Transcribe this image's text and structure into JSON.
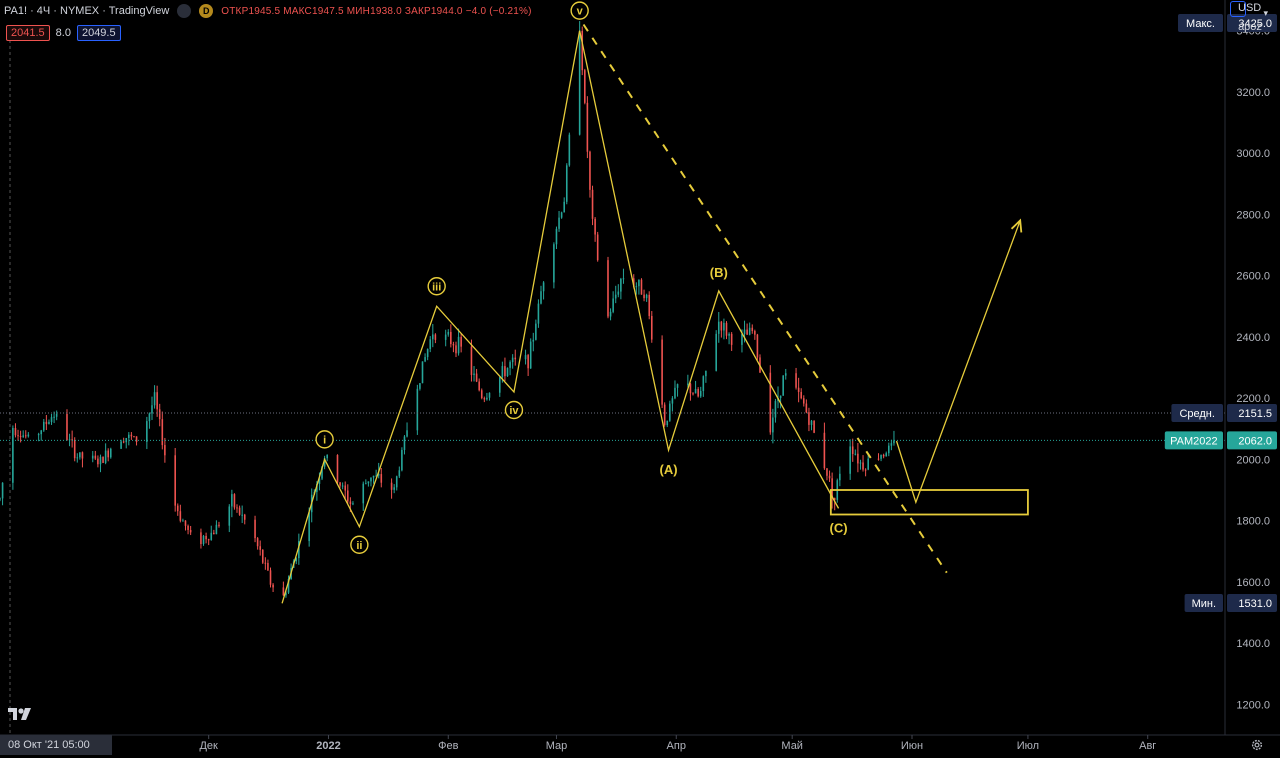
{
  "header": {
    "symbol_line": "PA1! · 4Ч · NYMEX · TradingView",
    "badge": "D",
    "ohlc": [
      {
        "k": "ОТКР",
        "v": "1945.5"
      },
      {
        "k": "МАКС",
        "v": "1947.5"
      },
      {
        "k": "МИН",
        "v": "1938.0"
      },
      {
        "k": "ЗАКР",
        "v": "1944.0"
      },
      {
        "k": "",
        "v": "−4.0 (−0.21%)"
      }
    ],
    "bid": "2041.5",
    "spread": "8.0",
    "ask": "2049.5"
  },
  "scale_box": {
    "currency": "USD",
    "mode": "apoz"
  },
  "colors": {
    "background": "#000000",
    "up": "#26a69a",
    "down": "#ef5350",
    "wave": "#e6cc3b",
    "axis_text": "#b2b5be",
    "label_bg": "#2a2e39"
  },
  "chart_data": {
    "type": "candlestick",
    "symbol": "PA1!",
    "interval": "4Ч",
    "exchange": "NYMEX",
    "y_axis": {
      "ticks": [
        1200,
        1400,
        1600,
        1800,
        2000,
        2200,
        2400,
        2600,
        2800,
        3000,
        3200,
        3400
      ],
      "tick_labels": [
        "1200.0",
        "1400.0",
        "1600.0",
        "1800.0",
        "2000.0",
        "2200.0",
        "2400.0",
        "2600.0",
        "2800.0",
        "3000.0",
        "3200.0",
        "3400.0"
      ],
      "ylim": [
        1100,
        3500
      ]
    },
    "x_axis": {
      "ticks": [
        {
          "date": "2021-12-01",
          "label": "Дек"
        },
        {
          "date": "2022-01-01",
          "label": "2022"
        },
        {
          "date": "2022-02-01",
          "label": "Фев"
        },
        {
          "date": "2022-03-01",
          "label": "Мар"
        },
        {
          "date": "2022-04-01",
          "label": "Апр"
        },
        {
          "date": "2022-05-01",
          "label": "Май"
        },
        {
          "date": "2022-06-01",
          "label": "Июн"
        },
        {
          "date": "2022-07-01",
          "label": "Июл"
        },
        {
          "date": "2022-08-01",
          "label": "Авг"
        }
      ],
      "xlim": [
        "2021-10-08",
        "2022-08-21"
      ],
      "cursor_label": "08 Окт '21  05:00"
    },
    "price_path": [
      {
        "date": "2021-10-08",
        "value": 1870
      },
      {
        "date": "2021-10-11",
        "value": 2110
      },
      {
        "date": "2021-10-16",
        "value": 2060
      },
      {
        "date": "2021-10-22",
        "value": 2150
      },
      {
        "date": "2021-10-28",
        "value": 2010
      },
      {
        "date": "2021-11-03",
        "value": 1990
      },
      {
        "date": "2021-11-08",
        "value": 2080
      },
      {
        "date": "2021-11-13",
        "value": 2060
      },
      {
        "date": "2021-11-17",
        "value": 2200
      },
      {
        "date": "2021-11-22",
        "value": 1860
      },
      {
        "date": "2021-11-27",
        "value": 1730
      },
      {
        "date": "2021-12-02",
        "value": 1760
      },
      {
        "date": "2021-12-07",
        "value": 1860
      },
      {
        "date": "2021-12-12",
        "value": 1770
      },
      {
        "date": "2021-12-17",
        "value": 1600
      },
      {
        "date": "2021-12-20",
        "value": 1535
      },
      {
        "date": "2021-12-26",
        "value": 1800
      },
      {
        "date": "2021-12-31",
        "value": 2010
      },
      {
        "date": "2022-01-07",
        "value": 1850
      },
      {
        "date": "2022-01-12",
        "value": 1950
      },
      {
        "date": "2022-01-18",
        "value": 1900
      },
      {
        "date": "2022-01-23",
        "value": 2200
      },
      {
        "date": "2022-01-28",
        "value": 2420
      },
      {
        "date": "2022-02-04",
        "value": 2370
      },
      {
        "date": "2022-02-10",
        "value": 2200
      },
      {
        "date": "2022-02-17",
        "value": 2310
      },
      {
        "date": "2022-02-22",
        "value": 2330
      },
      {
        "date": "2022-02-26",
        "value": 2620
      },
      {
        "date": "2022-03-03",
        "value": 2850
      },
      {
        "date": "2022-03-07",
        "value": 3425
      },
      {
        "date": "2022-03-10",
        "value": 2800
      },
      {
        "date": "2022-03-14",
        "value": 2450
      },
      {
        "date": "2022-03-18",
        "value": 2600
      },
      {
        "date": "2022-03-24",
        "value": 2550
      },
      {
        "date": "2022-03-29",
        "value": 2120
      },
      {
        "date": "2022-04-02",
        "value": 2260
      },
      {
        "date": "2022-04-07",
        "value": 2200
      },
      {
        "date": "2022-04-12",
        "value": 2450
      },
      {
        "date": "2022-04-16",
        "value": 2380
      },
      {
        "date": "2022-04-21",
        "value": 2420
      },
      {
        "date": "2022-04-25",
        "value": 2100
      },
      {
        "date": "2022-04-29",
        "value": 2280
      },
      {
        "date": "2022-05-04",
        "value": 2180
      },
      {
        "date": "2022-05-09",
        "value": 2000
      },
      {
        "date": "2022-05-12",
        "value": 1870
      },
      {
        "date": "2022-05-15",
        "value": 2080
      },
      {
        "date": "2022-05-19",
        "value": 1980
      },
      {
        "date": "2022-05-23",
        "value": 2010
      },
      {
        "date": "2022-05-28",
        "value": 2050
      }
    ],
    "drawings": {
      "impulse": {
        "points": [
          {
            "date": "2021-12-20",
            "value": 1530
          },
          {
            "date": "2021-12-31",
            "value": 2000
          },
          {
            "date": "2022-01-09",
            "value": 1780
          },
          {
            "date": "2022-01-29",
            "value": 2500
          },
          {
            "date": "2022-02-18",
            "value": 2220
          },
          {
            "date": "2022-03-07",
            "value": 3400
          }
        ],
        "labels": [
          "i",
          "ii",
          "iii",
          "iv",
          "v"
        ]
      },
      "correction": {
        "points": [
          {
            "date": "2022-03-07",
            "value": 3400
          },
          {
            "date": "2022-03-30",
            "value": 2030
          },
          {
            "date": "2022-04-12",
            "value": 2550
          },
          {
            "date": "2022-05-13",
            "value": 1840
          }
        ],
        "labels": [
          "(A)",
          "(B)",
          "(C)"
        ]
      },
      "projection": {
        "points": [
          {
            "date": "2022-05-28",
            "value": 2060
          },
          {
            "date": "2022-06-02",
            "value": 1860
          },
          {
            "date": "2022-06-29",
            "value": 2780
          }
        ]
      },
      "trendline_dashed": {
        "start": {
          "date": "2022-03-08",
          "value": 3420
        },
        "end": {
          "date": "2022-06-10",
          "value": 1630
        }
      },
      "support_box": {
        "from": "2022-05-11",
        "to": "2022-07-01",
        "top": 1900,
        "bottom": 1820
      }
    },
    "price_labels": [
      {
        "name": "Макс.",
        "value": "3425.0",
        "price": 3425,
        "kind": "max"
      },
      {
        "name": "Средн.",
        "value": "2151.5",
        "price": 2151.5,
        "kind": "avg"
      },
      {
        "name": "PAM2022",
        "value": "2062.0",
        "price": 2062,
        "kind": "last"
      },
      {
        "name": "Мин.",
        "value": "1531.0",
        "price": 1531,
        "kind": "min"
      }
    ]
  }
}
